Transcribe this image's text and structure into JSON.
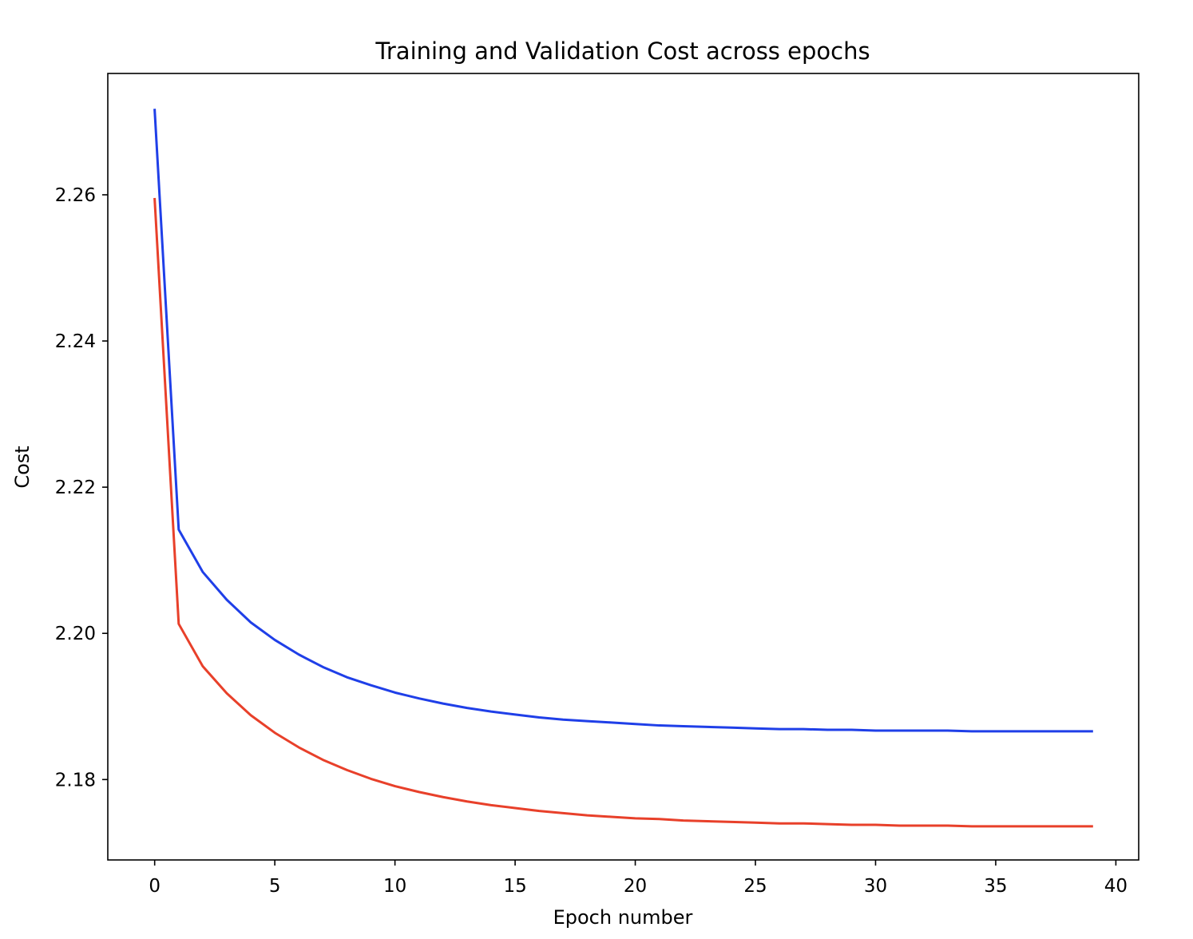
{
  "chart_data": {
    "type": "line",
    "title": "Training and Validation Cost across epochs",
    "xlabel": "Epoch number",
    "ylabel": "Cost",
    "xlim": [
      -1.95,
      40.95
    ],
    "ylim": [
      2.169,
      2.2766
    ],
    "xticks": [
      0,
      5,
      10,
      15,
      20,
      25,
      30,
      35,
      40
    ],
    "yticks": [
      2.18,
      2.2,
      2.22,
      2.24,
      2.26
    ],
    "grid": false,
    "legend": "none",
    "x": [
      0,
      1,
      2,
      3,
      4,
      5,
      6,
      7,
      8,
      9,
      10,
      11,
      12,
      13,
      14,
      15,
      16,
      17,
      18,
      19,
      20,
      21,
      22,
      23,
      24,
      25,
      26,
      27,
      28,
      29,
      30,
      31,
      32,
      33,
      34,
      35,
      36,
      37,
      38,
      39
    ],
    "series": [
      {
        "color": "#1f3fe8",
        "values": [
          2.2716,
          2.2142,
          2.2084,
          2.2046,
          2.2015,
          2.1991,
          2.1971,
          2.1954,
          2.194,
          2.1929,
          2.1919,
          2.1911,
          2.1904,
          2.1898,
          2.1893,
          2.1889,
          2.1885,
          2.1882,
          2.188,
          2.1878,
          2.1876,
          2.1874,
          2.1873,
          2.1872,
          2.1871,
          2.187,
          2.1869,
          2.1869,
          2.1868,
          2.1868,
          2.1867,
          2.1867,
          2.1867,
          2.1867,
          2.1866,
          2.1866,
          2.1866,
          2.1866,
          2.1866,
          2.1866
        ]
      },
      {
        "color": "#e8402a",
        "values": [
          2.2594,
          2.2013,
          2.1955,
          2.1918,
          2.1888,
          2.1864,
          2.1844,
          2.1827,
          2.1813,
          2.1801,
          2.1791,
          2.1783,
          2.1776,
          2.177,
          2.1765,
          2.1761,
          2.1757,
          2.1754,
          2.1751,
          2.1749,
          2.1747,
          2.1746,
          2.1744,
          2.1743,
          2.1742,
          2.1741,
          2.174,
          2.174,
          2.1739,
          2.1738,
          2.1738,
          2.1737,
          2.1737,
          2.1737,
          2.1736,
          2.1736,
          2.1736,
          2.1736,
          2.1736,
          2.1736
        ]
      }
    ]
  }
}
